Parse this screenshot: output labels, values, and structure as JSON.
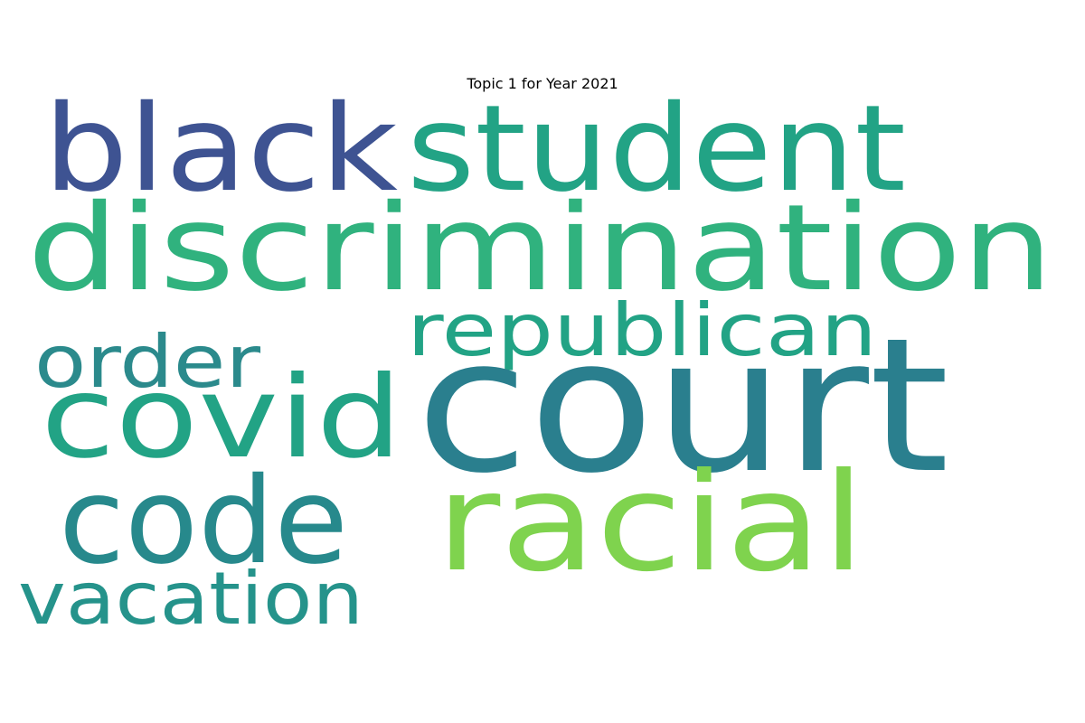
{
  "title": "Topic 1 for Year 2021",
  "words": [
    {
      "text": "black",
      "color": "#3e5392"
    },
    {
      "text": "student",
      "color": "#22a385"
    },
    {
      "text": "discrimination",
      "color": "#30b27e"
    },
    {
      "text": "republican",
      "color": "#22a385"
    },
    {
      "text": "order",
      "color": "#2b8a8c"
    },
    {
      "text": "covid",
      "color": "#22a385"
    },
    {
      "text": "court",
      "color": "#2a7f8e"
    },
    {
      "text": "code",
      "color": "#27898c"
    },
    {
      "text": "racial",
      "color": "#7fd34e"
    },
    {
      "text": "vacation",
      "color": "#25938b"
    }
  ]
}
